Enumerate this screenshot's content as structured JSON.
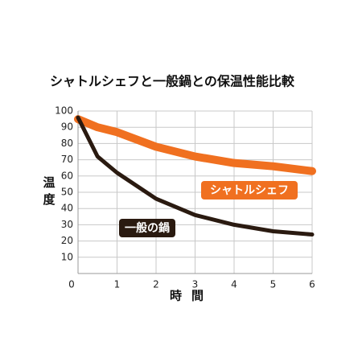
{
  "chart_data": {
    "type": "line",
    "title": "シャトルシェフと一般鍋との保温性能比較",
    "x_label": "時間",
    "y_label": "温度",
    "xlim": [
      0,
      6
    ],
    "xticks": [
      0,
      1,
      2,
      3,
      4,
      5,
      6
    ],
    "ylim": [
      0,
      100
    ],
    "yticks": [
      10,
      20,
      30,
      40,
      50,
      60,
      70,
      80,
      90,
      100
    ],
    "grid": true,
    "series": [
      {
        "name": "シャトルシェフ",
        "color": "#f07020",
        "x": [
          0,
          0.5,
          1,
          2,
          3,
          4,
          5,
          6
        ],
        "values": [
          95,
          90,
          87,
          78,
          72,
          68,
          66,
          63
        ]
      },
      {
        "name": "一般の鍋",
        "color": "#2a1a10",
        "x": [
          0,
          0.5,
          1,
          2,
          3,
          4,
          5,
          6
        ],
        "values": [
          96,
          72,
          62,
          46,
          36,
          30,
          26,
          24
        ]
      }
    ]
  }
}
